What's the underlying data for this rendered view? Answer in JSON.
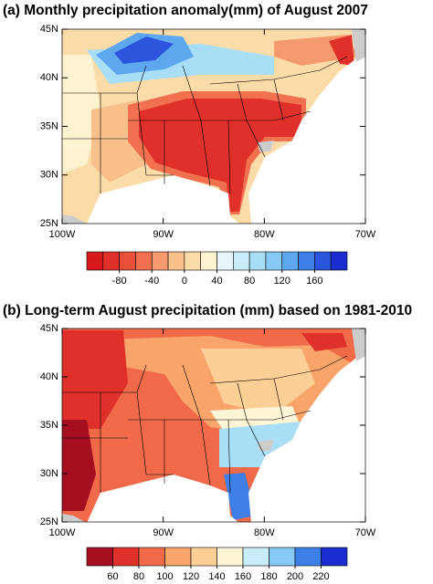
{
  "panels": [
    {
      "title": "(a) Monthly precipitation anomaly(mm) of August 2007",
      "xlim": [
        -100,
        -70
      ],
      "ylim": [
        25,
        45
      ],
      "xticks": [
        {
          "value": -100,
          "label": "100W"
        },
        {
          "value": -90,
          "label": "90W"
        },
        {
          "value": -80,
          "label": "80W"
        },
        {
          "value": -70,
          "label": "70W"
        }
      ],
      "yticks": [
        {
          "value": 25,
          "label": "25N"
        },
        {
          "value": 30,
          "label": "30N"
        },
        {
          "value": 35,
          "label": "35N"
        },
        {
          "value": 40,
          "label": "40N"
        },
        {
          "value": 45,
          "label": "45N"
        }
      ],
      "colorbar": {
        "lim": [
          -120,
          200
        ],
        "colors": [
          "#d7191c",
          "#e0302a",
          "#e8503a",
          "#f07050",
          "#f59a6e",
          "#f8c08a",
          "#fbdca8",
          "#fef3d0",
          "#e8f6fb",
          "#c8ecf8",
          "#a8def6",
          "#86c9f2",
          "#5ea7ee",
          "#3d7fe6",
          "#2a55dc",
          "#1a2dd0"
        ],
        "ticks": [
          -80,
          -40,
          0,
          40,
          80,
          120,
          160
        ]
      }
    },
    {
      "title": "(b) Long-term August precipitation (mm) based on 1981-2010",
      "xlim": [
        -100,
        -70
      ],
      "ylim": [
        25,
        45
      ],
      "xticks": [
        {
          "value": -100,
          "label": "100W"
        },
        {
          "value": -90,
          "label": "90W"
        },
        {
          "value": -80,
          "label": "80W"
        },
        {
          "value": -70,
          "label": "70W"
        }
      ],
      "yticks": [
        {
          "value": 25,
          "label": "25N"
        },
        {
          "value": 30,
          "label": "30N"
        },
        {
          "value": 35,
          "label": "35N"
        },
        {
          "value": 40,
          "label": "40N"
        },
        {
          "value": 45,
          "label": "45N"
        }
      ],
      "colorbar": {
        "lim": [
          40,
          240
        ],
        "colors": [
          "#a50f1f",
          "#e0302a",
          "#f06a4a",
          "#f8a46a",
          "#fbcf95",
          "#fdf5d6",
          "#c8ecf8",
          "#86c9f2",
          "#3d7fe6",
          "#1a2dd0"
        ],
        "ticks": [
          60,
          80,
          100,
          120,
          140,
          160,
          180,
          200,
          220
        ]
      }
    }
  ]
}
